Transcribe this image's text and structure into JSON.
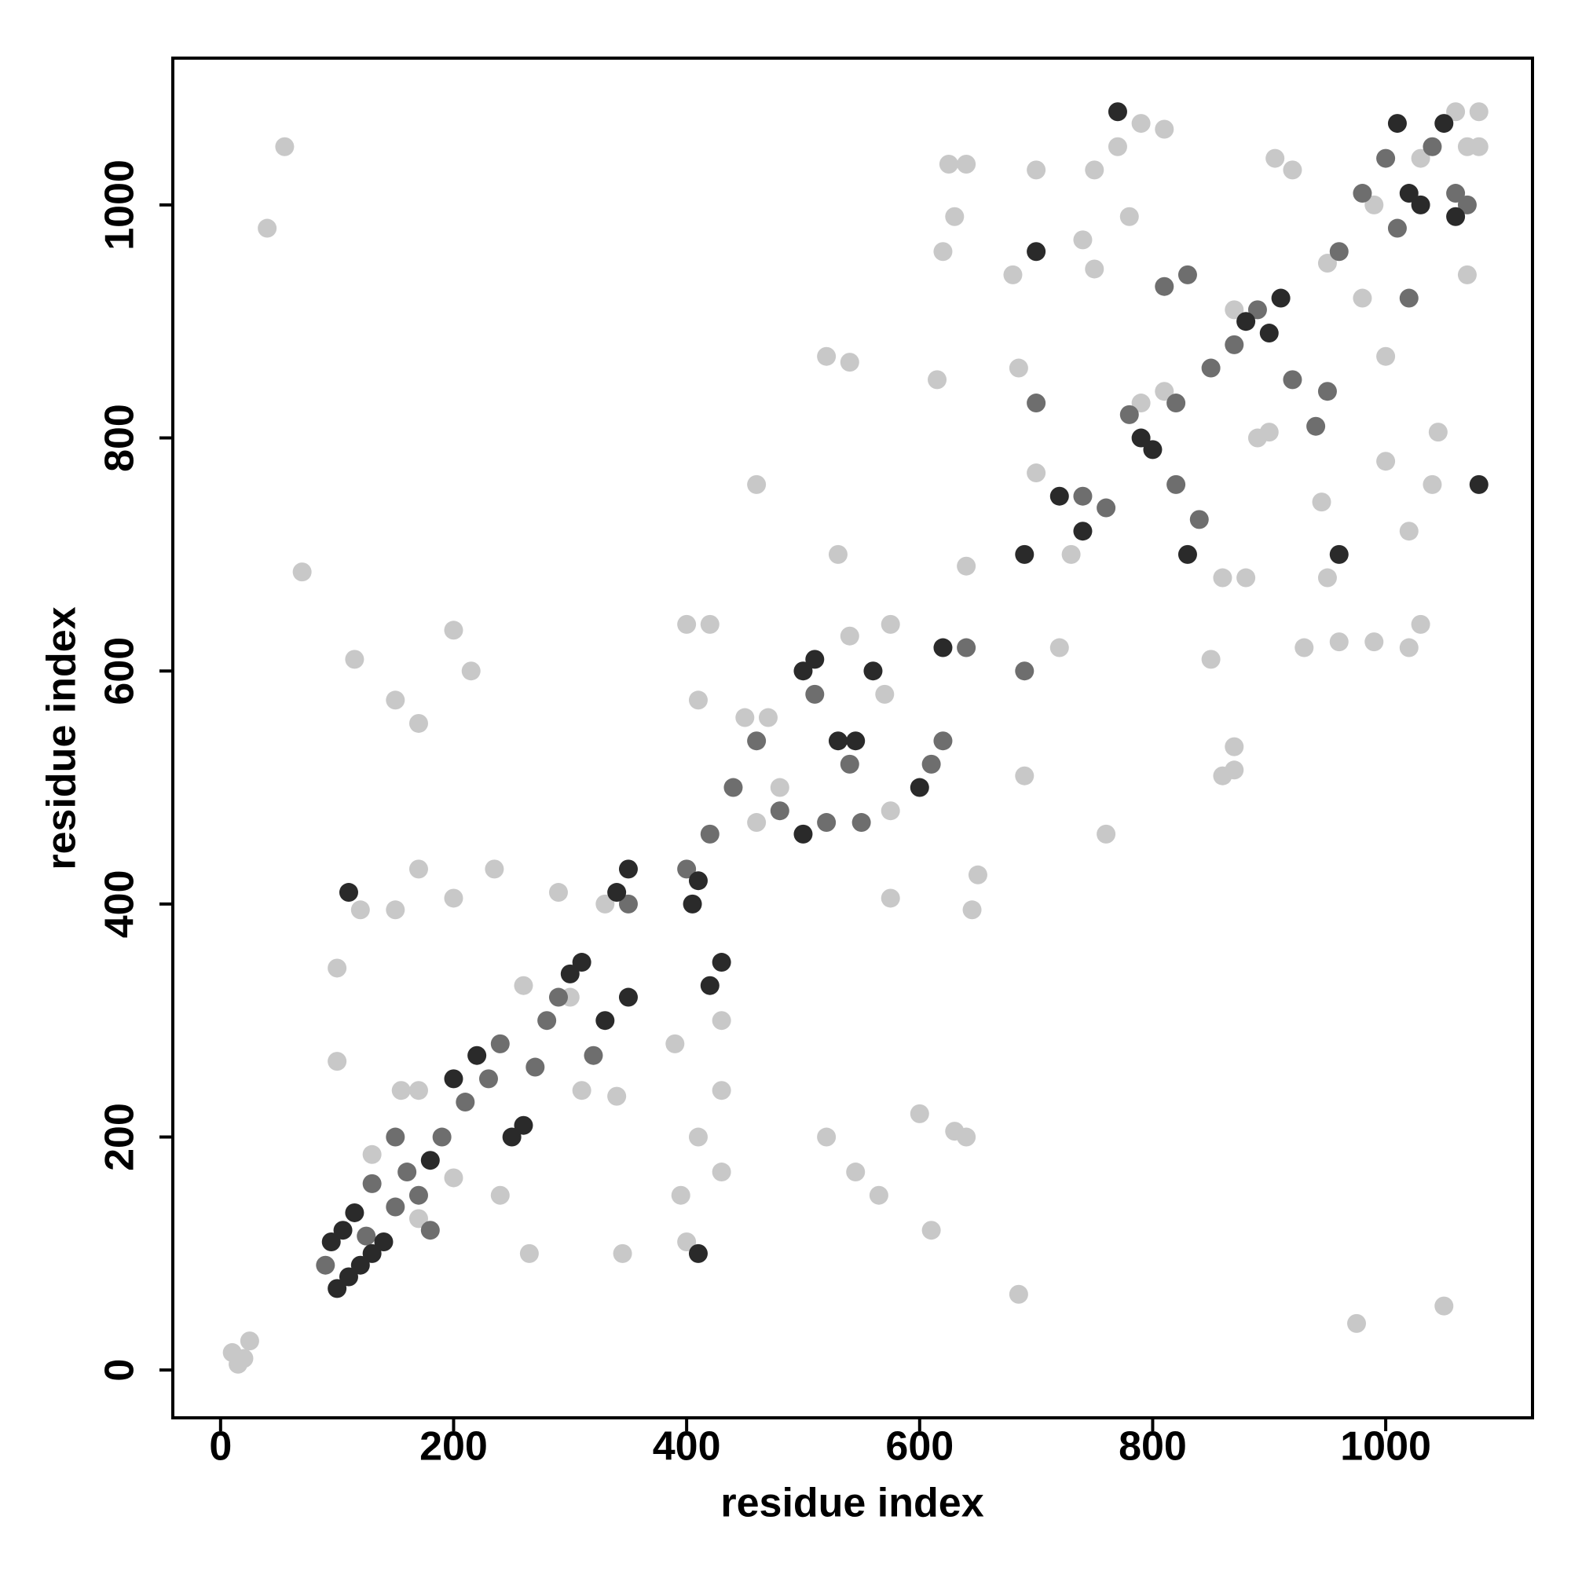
{
  "chart_data": {
    "type": "scatter",
    "x_label": "residue index",
    "y_label": "residue index",
    "xlim": [
      -41,
      1126
    ],
    "ylim": [
      -41,
      1126
    ],
    "xticks": [
      0,
      200,
      400,
      600,
      800,
      1000
    ],
    "yticks": [
      0,
      200,
      400,
      600,
      800,
      1000
    ],
    "grid": false,
    "series": [
      {
        "color": "#c8c8c8",
        "x": [
          10,
          15,
          55,
          40,
          70,
          115,
          150,
          170,
          170,
          200,
          200,
          215,
          235,
          100,
          100,
          120,
          150,
          155,
          170,
          240,
          265,
          290,
          310,
          340,
          345,
          395,
          400,
          410,
          400,
          410,
          420,
          430,
          430,
          390,
          430,
          460,
          470,
          520,
          540,
          530,
          520,
          545,
          565,
          575,
          575,
          575,
          600,
          610,
          615,
          620,
          625,
          630,
          640,
          640,
          650,
          645,
          630,
          640,
          685,
          680,
          685,
          690,
          700,
          700,
          720,
          730,
          740,
          750,
          750,
          770,
          780,
          790,
          810,
          760,
          850,
          860,
          870,
          870,
          860,
          880,
          890,
          900,
          905,
          920,
          930,
          945,
          950,
          960,
          975,
          980,
          990,
          1000,
          1020,
          1020,
          1030,
          1040,
          1045,
          1050,
          1060,
          1070,
          1080,
          1070,
          1080,
          810,
          790,
          870,
          330,
          570,
          540,
          480,
          460,
          450,
          300,
          260,
          200,
          170,
          130,
          1000,
          950,
          990,
          1030,
          20,
          25
        ],
        "values": [
          15,
          5,
          1050,
          980,
          685,
          610,
          575,
          555,
          430,
          405,
          635,
          600,
          430,
          345,
          265,
          395,
          395,
          240,
          130,
          150,
          100,
          410,
          240,
          235,
          100,
          150,
          110,
          200,
          640,
          575,
          640,
          240,
          170,
          280,
          300,
          760,
          560,
          870,
          865,
          700,
          200,
          170,
          150,
          640,
          405,
          480,
          220,
          120,
          850,
          960,
          1035,
          990,
          1035,
          690,
          425,
          395,
          205,
          200,
          65,
          940,
          860,
          510,
          1030,
          770,
          620,
          700,
          970,
          945,
          1030,
          1050,
          990,
          1070,
          1065,
          460,
          610,
          510,
          515,
          535,
          680,
          680,
          800,
          805,
          1040,
          1030,
          620,
          745,
          680,
          625,
          40,
          920,
          625,
          780,
          720,
          620,
          640,
          760,
          805,
          55,
          1080,
          1050,
          1050,
          940,
          1080,
          840,
          830,
          910,
          400,
          580,
          630,
          500,
          470,
          560,
          320,
          330,
          165,
          240,
          185,
          870,
          950,
          1000,
          1040,
          10,
          25
        ]
      },
      {
        "color": "#6e6e6e",
        "x": [
          90,
          125,
          150,
          160,
          170,
          190,
          210,
          230,
          240,
          270,
          280,
          290,
          320,
          180,
          150,
          130,
          350,
          400,
          420,
          440,
          460,
          480,
          510,
          520,
          540,
          550,
          610,
          620,
          640,
          690,
          700,
          740,
          760,
          780,
          820,
          840,
          850,
          870,
          890,
          920,
          940,
          950,
          960,
          980,
          1000,
          1040,
          1060,
          1070,
          830,
          810,
          1020,
          820,
          1010
        ],
        "values": [
          90,
          115,
          140,
          170,
          150,
          200,
          230,
          250,
          280,
          260,
          300,
          320,
          270,
          120,
          200,
          160,
          400,
          430,
          460,
          500,
          540,
          480,
          580,
          470,
          520,
          470,
          520,
          540,
          620,
          600,
          830,
          750,
          740,
          820,
          760,
          730,
          860,
          880,
          910,
          850,
          810,
          840,
          960,
          1010,
          1040,
          1050,
          1010,
          1000,
          940,
          930,
          920,
          830,
          980
        ]
      },
      {
        "color": "#2a2a2a",
        "x": [
          100,
          110,
          120,
          130,
          140,
          105,
          115,
          95,
          180,
          200,
          220,
          250,
          260,
          300,
          310,
          330,
          350,
          340,
          350,
          405,
          410,
          420,
          430,
          500,
          510,
          530,
          560,
          600,
          620,
          690,
          720,
          740,
          790,
          800,
          830,
          880,
          900,
          910,
          1010,
          1020,
          1030,
          1060,
          1050,
          770,
          700,
          960,
          1080,
          110,
          410,
          500,
          545
        ],
        "values": [
          70,
          80,
          90,
          100,
          110,
          120,
          135,
          110,
          180,
          250,
          270,
          200,
          210,
          340,
          350,
          300,
          320,
          410,
          430,
          400,
          420,
          330,
          350,
          600,
          610,
          540,
          600,
          500,
          620,
          700,
          750,
          720,
          800,
          790,
          700,
          900,
          890,
          920,
          1070,
          1010,
          1000,
          990,
          1070,
          1080,
          960,
          700,
          760,
          410,
          100,
          460,
          540
        ]
      }
    ]
  }
}
